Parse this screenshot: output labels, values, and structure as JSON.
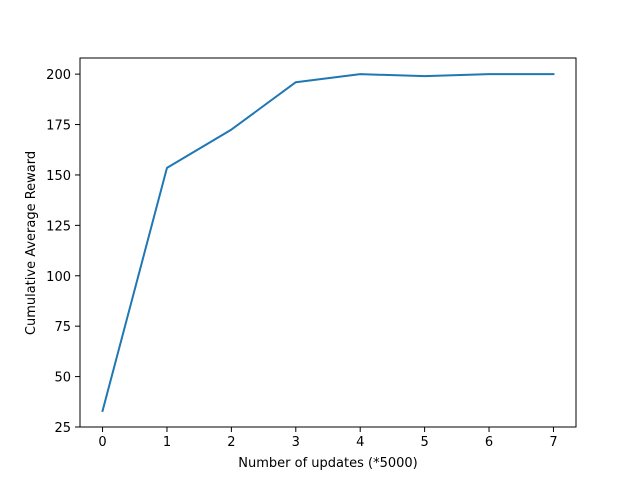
{
  "chart_data": {
    "type": "line",
    "title": "",
    "xlabel": "Number of updates (*5000)",
    "ylabel": "Cumulative Average Reward",
    "xlim": [
      -0.35,
      7.35
    ],
    "ylim": [
      25,
      208
    ],
    "xticks": [
      0,
      1,
      2,
      3,
      4,
      5,
      6,
      7
    ],
    "xtick_labels": [
      "0",
      "1",
      "2",
      "3",
      "4",
      "5",
      "6",
      "7"
    ],
    "yticks": [
      25,
      50,
      75,
      100,
      125,
      150,
      175,
      200
    ],
    "ytick_labels": [
      "25",
      "50",
      "75",
      "100",
      "125",
      "150",
      "175",
      "200"
    ],
    "grid": false,
    "legend": "none",
    "series": [
      {
        "color": "#1f77b4",
        "x": [
          0,
          1,
          2,
          3,
          4,
          5,
          6,
          7
        ],
        "y": [
          33,
          153.5,
          172.5,
          196,
          200,
          199,
          200,
          200
        ]
      }
    ]
  }
}
